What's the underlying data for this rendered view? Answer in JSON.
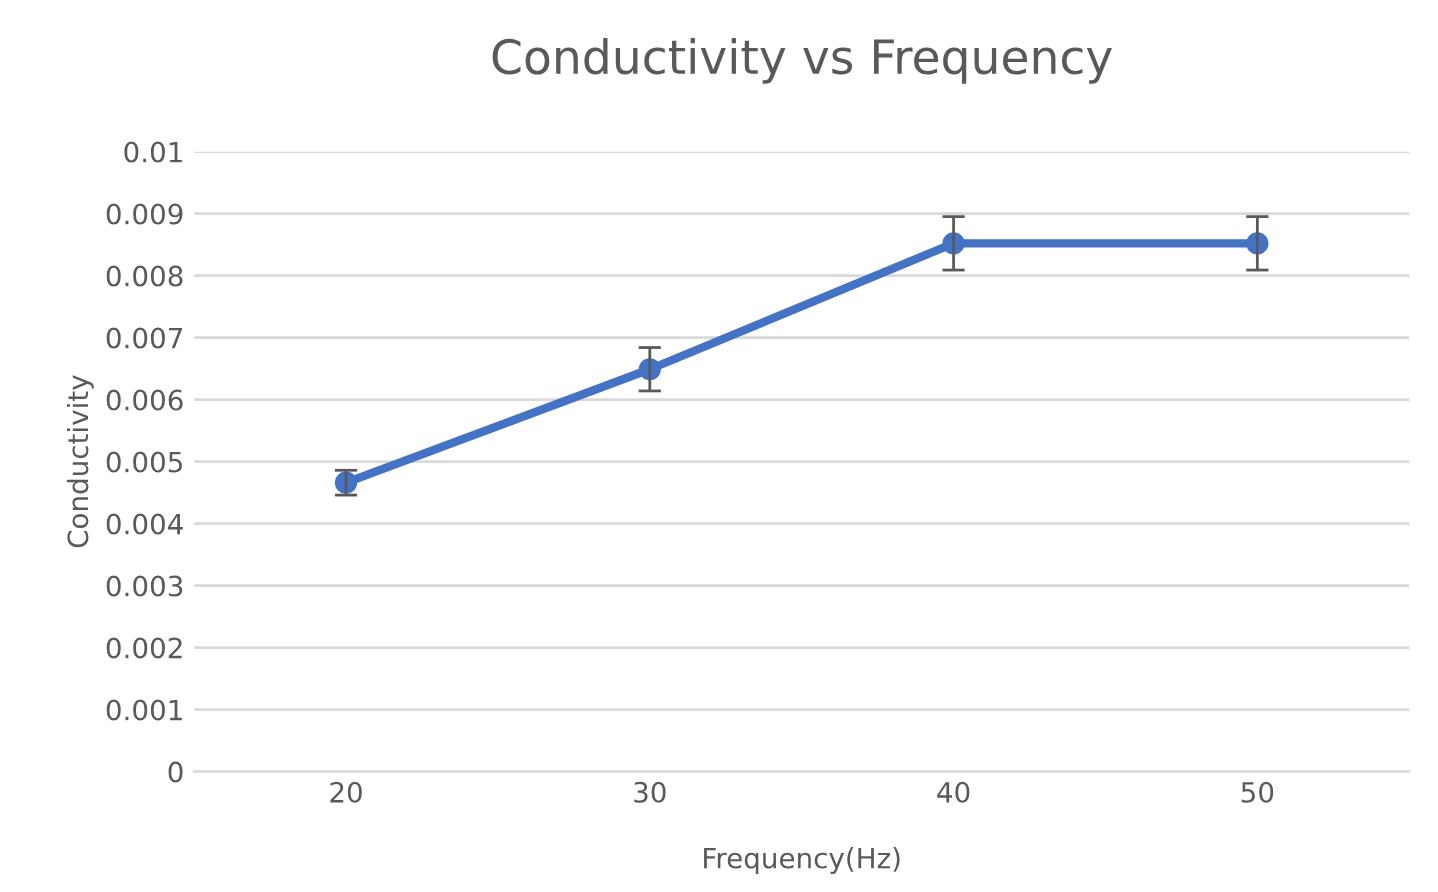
{
  "chart_data": {
    "type": "line",
    "title": "Conductivity vs Frequency",
    "xlabel": "Frequency(Hz)",
    "ylabel": "Conductivity",
    "categories": [
      "20",
      "30",
      "40",
      "50"
    ],
    "series": [
      {
        "color": "#4472c4",
        "values": [
          0.00466,
          0.00649,
          0.00852,
          0.00852
        ],
        "errors": [
          0.0002,
          0.00035,
          0.00043,
          0.00043
        ]
      }
    ],
    "ylim": [
      0,
      0.01
    ],
    "yticks": [
      0,
      0.001,
      0.002,
      0.003,
      0.004,
      0.005,
      0.006,
      0.007,
      0.008,
      0.009,
      0.01
    ],
    "grid": "y",
    "marker": "circle",
    "line_style": "solid"
  }
}
